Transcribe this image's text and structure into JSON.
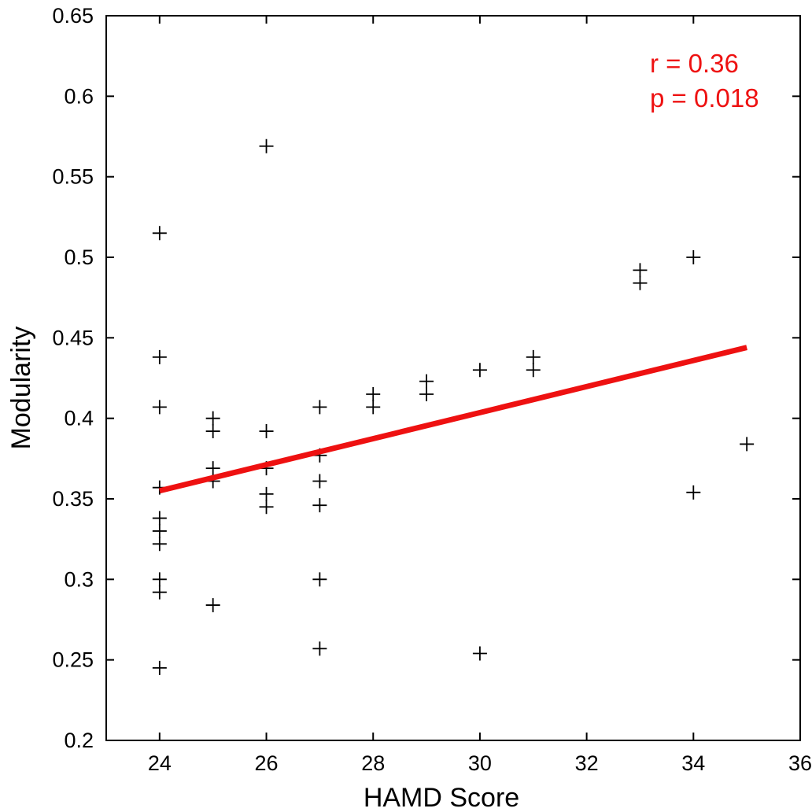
{
  "chart_data": {
    "type": "scatter",
    "title": "",
    "xlabel": "HAMD Score",
    "ylabel": "Modularity",
    "xlim": [
      23,
      36
    ],
    "ylim": [
      0.2,
      0.65
    ],
    "xticks": [
      24,
      26,
      28,
      30,
      32,
      34,
      36
    ],
    "yticks": [
      0.2,
      0.25,
      0.3,
      0.35,
      0.4,
      0.45,
      0.5,
      0.55,
      0.6,
      0.65
    ],
    "xtick_labels": [
      "24",
      "26",
      "28",
      "30",
      "32",
      "34",
      "36"
    ],
    "ytick_labels": [
      "0.2",
      "0.25",
      "0.3",
      "0.35",
      "0.4",
      "0.45",
      "0.5",
      "0.55",
      "0.6",
      "0.65"
    ],
    "grid": false,
    "marker": "+",
    "marker_color": "#000000",
    "points": [
      {
        "x": 24,
        "y": 0.515
      },
      {
        "x": 24,
        "y": 0.438
      },
      {
        "x": 24,
        "y": 0.407
      },
      {
        "x": 24,
        "y": 0.357
      },
      {
        "x": 24,
        "y": 0.338
      },
      {
        "x": 24,
        "y": 0.33
      },
      {
        "x": 24,
        "y": 0.322
      },
      {
        "x": 24,
        "y": 0.3
      },
      {
        "x": 24,
        "y": 0.292
      },
      {
        "x": 24,
        "y": 0.245
      },
      {
        "x": 25,
        "y": 0.4
      },
      {
        "x": 25,
        "y": 0.392
      },
      {
        "x": 25,
        "y": 0.369
      },
      {
        "x": 25,
        "y": 0.361
      },
      {
        "x": 25,
        "y": 0.284
      },
      {
        "x": 26,
        "y": 0.569
      },
      {
        "x": 26,
        "y": 0.392
      },
      {
        "x": 26,
        "y": 0.369
      },
      {
        "x": 26,
        "y": 0.353
      },
      {
        "x": 26,
        "y": 0.345
      },
      {
        "x": 27,
        "y": 0.407
      },
      {
        "x": 27,
        "y": 0.377
      },
      {
        "x": 27,
        "y": 0.361
      },
      {
        "x": 27,
        "y": 0.346
      },
      {
        "x": 27,
        "y": 0.3
      },
      {
        "x": 27,
        "y": 0.257
      },
      {
        "x": 28,
        "y": 0.415
      },
      {
        "x": 28,
        "y": 0.407
      },
      {
        "x": 29,
        "y": 0.423
      },
      {
        "x": 29,
        "y": 0.415
      },
      {
        "x": 30,
        "y": 0.43
      },
      {
        "x": 30,
        "y": 0.254
      },
      {
        "x": 31,
        "y": 0.438
      },
      {
        "x": 31,
        "y": 0.43
      },
      {
        "x": 33,
        "y": 0.492
      },
      {
        "x": 33,
        "y": 0.484
      },
      {
        "x": 34,
        "y": 0.5
      },
      {
        "x": 34,
        "y": 0.354
      },
      {
        "x": 35,
        "y": 0.384
      }
    ],
    "fit_line": {
      "x": [
        24,
        35
      ],
      "y": [
        0.355,
        0.444
      ],
      "color": "#ee1111"
    },
    "annotations": [
      {
        "text": "r = 0.36",
        "color": "#ee1111",
        "position": "top-right"
      },
      {
        "text": "p = 0.018",
        "color": "#ee1111",
        "position": "top-right"
      }
    ]
  }
}
